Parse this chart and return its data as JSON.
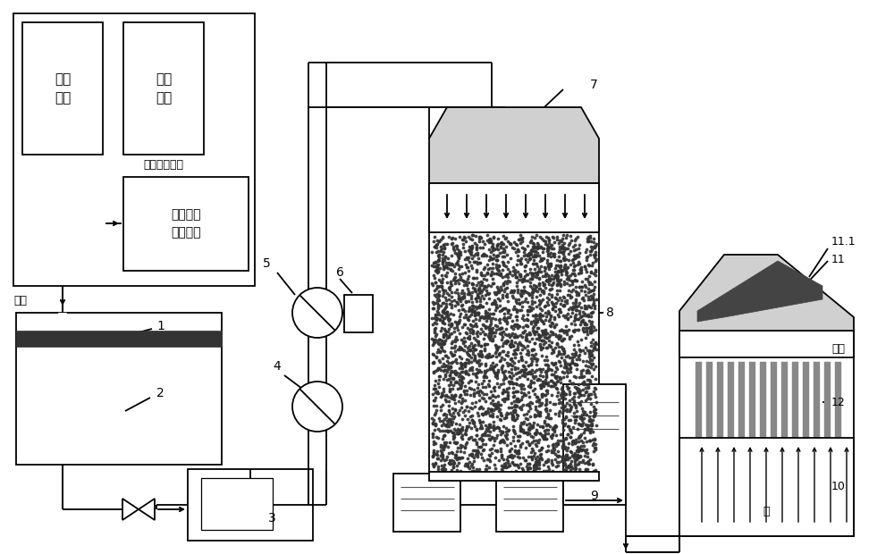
{
  "bg_color": "#ffffff",
  "line_color": "#000000",
  "text_labels": {
    "youzhi": "优质\n废水",
    "lazhi": "劣质\n废水",
    "feishui_unit": "废水收集单元",
    "lazhi_direct": "劣质废水\n直排装置",
    "jinshui": "进水",
    "chushui": "出水",
    "qi": "气"
  },
  "stipple_color": "#444444",
  "gray_fill": "#d0d0d0",
  "dark_fill": "#333333"
}
